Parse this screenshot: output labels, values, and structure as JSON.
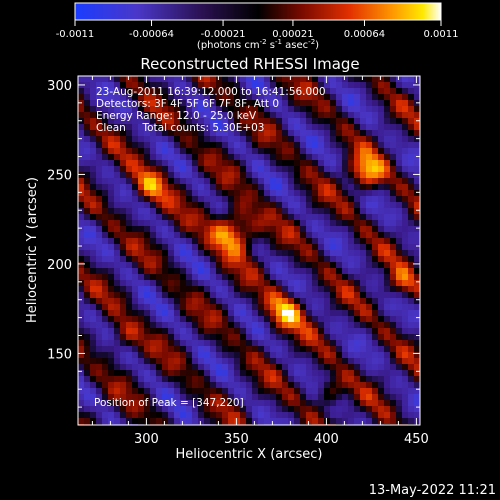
{
  "colorbar": {
    "tick_labels": [
      "-0.0011",
      "-0.00064",
      "-0.00021",
      "0.00021",
      "0.00064",
      "0.0011"
    ],
    "units_prefix": "(photons cm",
    "units_exp1": "-2",
    "units_mid1": " s",
    "units_exp2": "-1",
    "units_mid2": " asec",
    "units_exp3": "-2",
    "units_suffix": ")"
  },
  "chart_data": {
    "type": "heatmap",
    "title": "Reconstructed RHESSI Image",
    "xlabel": "Heliocentric X (arcsec)",
    "ylabel": "Heliocentric Y (arcsec)",
    "xlim": [
      262,
      452
    ],
    "ylim": [
      110,
      305
    ],
    "x_ticks": [
      300,
      350,
      400,
      450
    ],
    "y_ticks": [
      150,
      200,
      250,
      300
    ],
    "colormap": "blue-black-red-yellow-white",
    "vmin": -0.0011,
    "vmax": 0.0011,
    "peak": [
      347,
      220
    ],
    "info_lines": [
      "23-Aug-2011 16:39:12.000 to 16:41:56.000",
      "Detectors: 3F 4F 5F 6F 7F 8F, Att 0",
      "Energy Range: 12.0 - 25.0 keV",
      "Clean     Total counts: 5.30E+03"
    ],
    "peak_label": "Position of Peak = [347,220]"
  },
  "footer": {
    "timestamp": "13-May-2022 11:21"
  }
}
